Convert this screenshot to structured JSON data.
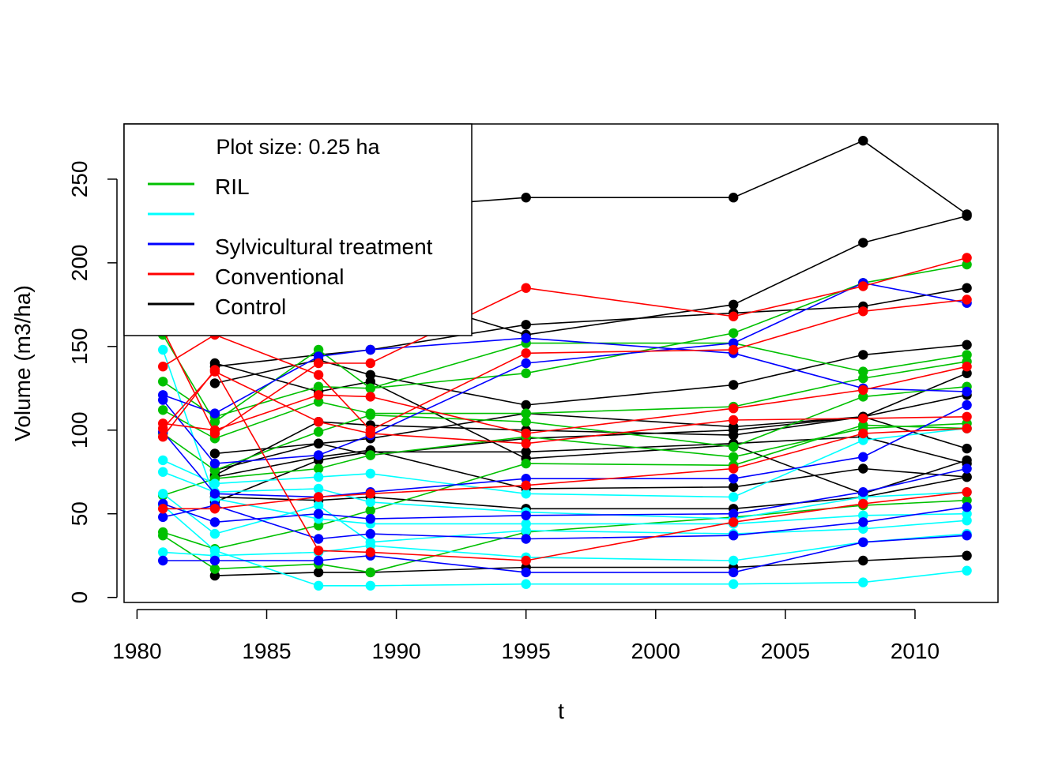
{
  "chart_data": {
    "type": "line",
    "title": "",
    "xlabel": "t",
    "ylabel": "Volume (m3/ha)",
    "xlim": [
      1979.5,
      2013.2
    ],
    "ylim": [
      -3,
      283
    ],
    "x_ticks": [
      1980,
      1985,
      1990,
      1995,
      2000,
      2005,
      2010
    ],
    "y_ticks": [
      0,
      50,
      100,
      150,
      200,
      250
    ],
    "grid": false,
    "legend": {
      "placement": "top-left",
      "title": "Plot size: 0.25 ha",
      "entries": [
        {
          "label": "RIL",
          "color": "#00C000"
        },
        {
          "label": "",
          "color": "#00FFFF"
        },
        {
          "label": "Sylvicultural treatment",
          "color": "#0000FF"
        },
        {
          "label": "Conventional",
          "color": "#FF0000"
        },
        {
          "label": "Control",
          "color": "#000000"
        }
      ]
    },
    "x": [
      1981,
      1983,
      1987,
      1989,
      1995,
      2003,
      2008,
      2012
    ],
    "series": [
      {
        "color": "#000000",
        "values": [
          null,
          232,
          null,
          232,
          239,
          239,
          273,
          229
        ]
      },
      {
        "color": "#000000",
        "values": [
          null,
          185,
          null,
          185,
          157,
          175,
          212,
          228
        ]
      },
      {
        "color": "#000000",
        "values": [
          null,
          138,
          145,
          148,
          163,
          170,
          174,
          185
        ]
      },
      {
        "color": "#000000",
        "values": [
          null,
          128,
          142,
          133,
          115,
          127,
          145,
          151
        ]
      },
      {
        "color": "#000000",
        "values": [
          null,
          86,
          92,
          95,
          110,
          102,
          108,
          134
        ]
      },
      {
        "color": "#000000",
        "values": [
          null,
          76,
          92,
          85,
          95,
          100,
          108,
          121
        ]
      },
      {
        "color": "#000000",
        "values": [
          null,
          73,
          105,
          103,
          100,
          97,
          108,
          89
        ]
      },
      {
        "color": "#000000",
        "values": [
          null,
          57,
          82,
          87,
          87,
          92,
          96,
          80
        ]
      },
      {
        "color": "#000000",
        "values": [
          null,
          140,
          123,
          129,
          83,
          91,
          62,
          82
        ]
      },
      {
        "color": "#000000",
        "values": [
          null,
          72,
          84,
          88,
          65,
          66,
          77,
          72
        ]
      },
      {
        "color": "#000000",
        "values": [
          null,
          60,
          58,
          60,
          53,
          53,
          60,
          72
        ]
      },
      {
        "color": "#000000",
        "values": [
          null,
          13,
          15,
          15,
          18,
          18,
          22,
          25
        ]
      },
      {
        "color": "#00C000",
        "values": [
          157,
          105,
          148,
          125,
          152,
          152,
          135,
          145
        ]
      },
      {
        "color": "#00C000",
        "values": [
          129,
          108,
          126,
          125,
          134,
          158,
          188,
          199
        ]
      },
      {
        "color": "#00C000",
        "values": [
          112,
          95,
          117,
          110,
          110,
          114,
          131,
          141
        ]
      },
      {
        "color": "#00C000",
        "values": [
          98,
          76,
          99,
          109,
          105,
          90,
          120,
          126
        ]
      },
      {
        "color": "#00C000",
        "values": [
          61,
          71,
          77,
          85,
          96,
          84,
          101,
          104
        ]
      },
      {
        "color": "#00C000",
        "values": [
          39,
          29,
          43,
          52,
          80,
          79,
          103,
          101
        ]
      },
      {
        "color": "#00C000",
        "values": [
          37,
          17,
          20,
          15,
          39,
          48,
          55,
          58
        ]
      },
      {
        "color": "#00FFFF",
        "values": [
          82,
          68,
          72,
          74,
          62,
          60,
          94,
          101
        ]
      },
      {
        "color": "#00FFFF",
        "values": [
          75,
          63,
          65,
          57,
          51,
          47,
          60,
          63
        ]
      },
      {
        "color": "#00FFFF",
        "values": [
          148,
          59,
          47,
          44,
          44,
          44,
          49,
          50
        ]
      },
      {
        "color": "#00FFFF",
        "values": [
          62,
          38,
          55,
          33,
          40,
          38,
          41,
          46
        ]
      },
      {
        "color": "#00FFFF",
        "values": [
          27,
          25,
          27,
          31,
          24,
          22,
          33,
          38
        ]
      },
      {
        "color": "#00FFFF",
        "values": [
          55,
          28,
          7,
          7,
          8,
          8,
          9,
          16
        ]
      },
      {
        "color": "#0000FF",
        "values": [
          121,
          110,
          144,
          148,
          155,
          146,
          125,
          123
        ]
      },
      {
        "color": "#0000FF",
        "values": [
          118,
          80,
          85,
          97,
          140,
          152,
          188,
          176
        ]
      },
      {
        "color": "#0000FF",
        "values": [
          99,
          62,
          60,
          63,
          71,
          71,
          84,
          115
        ]
      },
      {
        "color": "#0000FF",
        "values": [
          56,
          45,
          50,
          47,
          49,
          50,
          63,
          77
        ]
      },
      {
        "color": "#0000FF",
        "values": [
          48,
          55,
          35,
          38,
          35,
          37,
          45,
          54
        ]
      },
      {
        "color": "#0000FF",
        "values": [
          22,
          22,
          22,
          25,
          15,
          15,
          33,
          37
        ]
      },
      {
        "color": "#FF0000",
        "values": [
          160,
          98,
          140,
          140,
          185,
          168,
          186,
          203
        ]
      },
      {
        "color": "#FF0000",
        "values": [
          138,
          157,
          133,
          100,
          146,
          148,
          171,
          178
        ]
      },
      {
        "color": "#FF0000",
        "values": [
          104,
          100,
          121,
          120,
          98,
          113,
          124,
          138
        ]
      },
      {
        "color": "#FF0000",
        "values": [
          101,
          135,
          105,
          98,
          92,
          106,
          107,
          108
        ]
      },
      {
        "color": "#FF0000",
        "values": [
          53,
          53,
          60,
          62,
          67,
          77,
          98,
          101
        ]
      },
      {
        "color": "#FF0000",
        "values": [
          96,
          136,
          28,
          27,
          22,
          45,
          56,
          63
        ]
      }
    ]
  }
}
